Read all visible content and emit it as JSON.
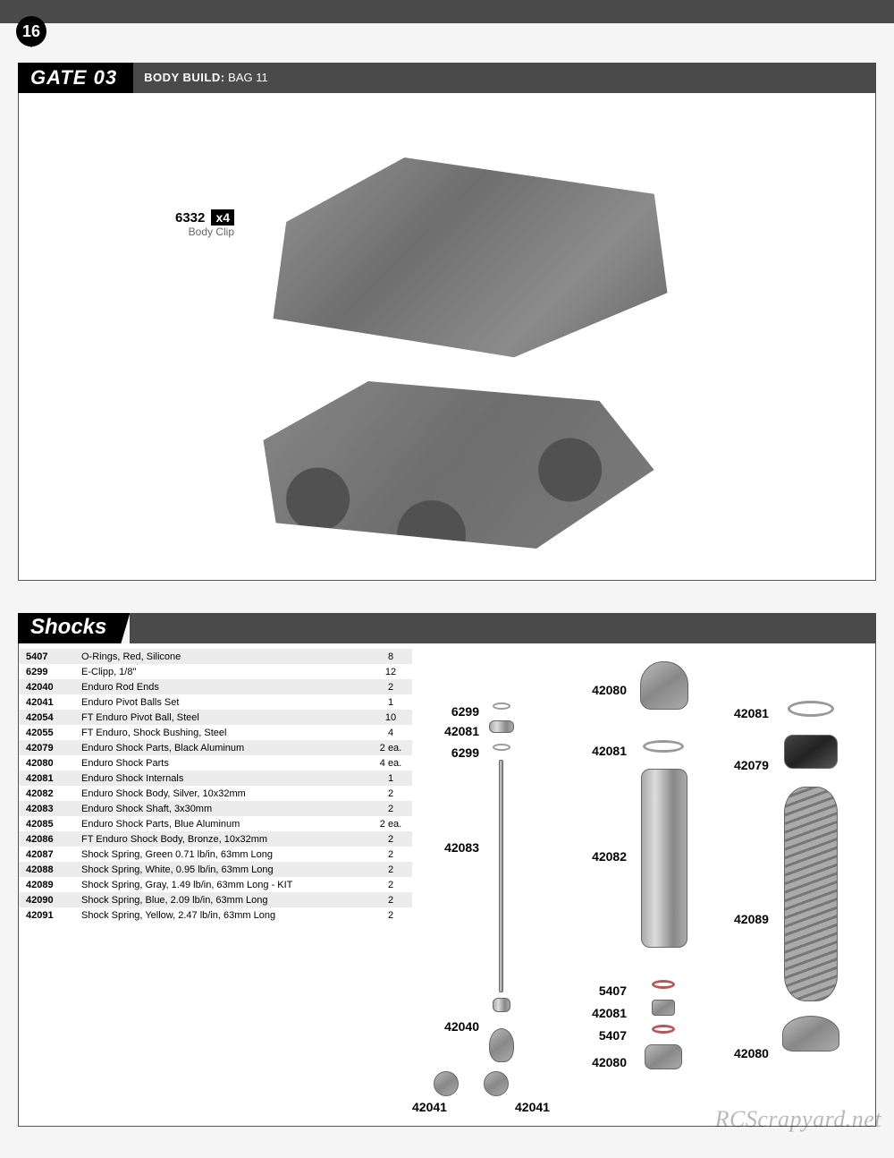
{
  "page_number": "16",
  "gate": {
    "label": "GATE 03",
    "subtitle_bold": "BODY BUILD:",
    "subtitle_rest": " BAG 11",
    "callout": {
      "num": "6332",
      "qty": "x4",
      "name": "Body Clip"
    }
  },
  "shocks": {
    "title": "Shocks",
    "parts": [
      {
        "num": "5407",
        "desc": "O-Rings, Red, Silicone",
        "qty": "8"
      },
      {
        "num": "6299",
        "desc": "E-Clipp, 1/8\"",
        "qty": "12"
      },
      {
        "num": "42040",
        "desc": "Enduro Rod Ends",
        "qty": "2"
      },
      {
        "num": "42041",
        "desc": "Enduro Pivot Balls Set",
        "qty": "1"
      },
      {
        "num": "42054",
        "desc": "FT Enduro Pivot Ball, Steel",
        "qty": "10"
      },
      {
        "num": "42055",
        "desc": "FT Enduro, Shock Bushing, Steel",
        "qty": "4"
      },
      {
        "num": "42079",
        "desc": "Enduro Shock Parts, Black Aluminum",
        "qty": "2 ea."
      },
      {
        "num": "42080",
        "desc": "Enduro Shock Parts",
        "qty": "4 ea."
      },
      {
        "num": "42081",
        "desc": "Enduro Shock Internals",
        "qty": "1"
      },
      {
        "num": "42082",
        "desc": "Enduro Shock Body, Silver, 10x32mm",
        "qty": "2"
      },
      {
        "num": "42083",
        "desc": "Enduro Shock Shaft, 3x30mm",
        "qty": "2"
      },
      {
        "num": "42085",
        "desc": "Enduro Shock Parts, Blue Aluminum",
        "qty": "2 ea."
      },
      {
        "num": "42086",
        "desc": "FT Enduro Shock Body, Bronze, 10x32mm",
        "qty": "2"
      },
      {
        "num": "42087",
        "desc": "Shock Spring, Green 0.71 lb/in, 63mm Long",
        "qty": "2"
      },
      {
        "num": "42088",
        "desc": "Shock Spring, White, 0.95 lb/in, 63mm Long",
        "qty": "2"
      },
      {
        "num": "42089",
        "desc": "Shock Spring, Gray, 1.49 lb/in, 63mm Long - KIT",
        "qty": "2"
      },
      {
        "num": "42090",
        "desc": "Shock Spring, Blue, 2.09 lb/in, 63mm Long",
        "qty": "2"
      },
      {
        "num": "42091",
        "desc": "Shock Spring, Yellow, 2.47 lb/in, 63mm Long",
        "qty": "2"
      }
    ],
    "diagram_labels": {
      "l6299a": "6299",
      "l42081a": "42081",
      "l6299b": "6299",
      "l42083": "42083",
      "l42040": "42040",
      "l42041a": "42041",
      "l42041b": "42041",
      "l42080a": "42080",
      "l42081b": "42081",
      "l42082": "42082",
      "l5407a": "5407",
      "l42081c": "42081",
      "l5407b": "5407",
      "l42080b": "42080",
      "l42081d": "42081",
      "l42079": "42079",
      "l42089": "42089",
      "l42080c": "42080"
    }
  },
  "watermark": "RCScrapyard.net"
}
